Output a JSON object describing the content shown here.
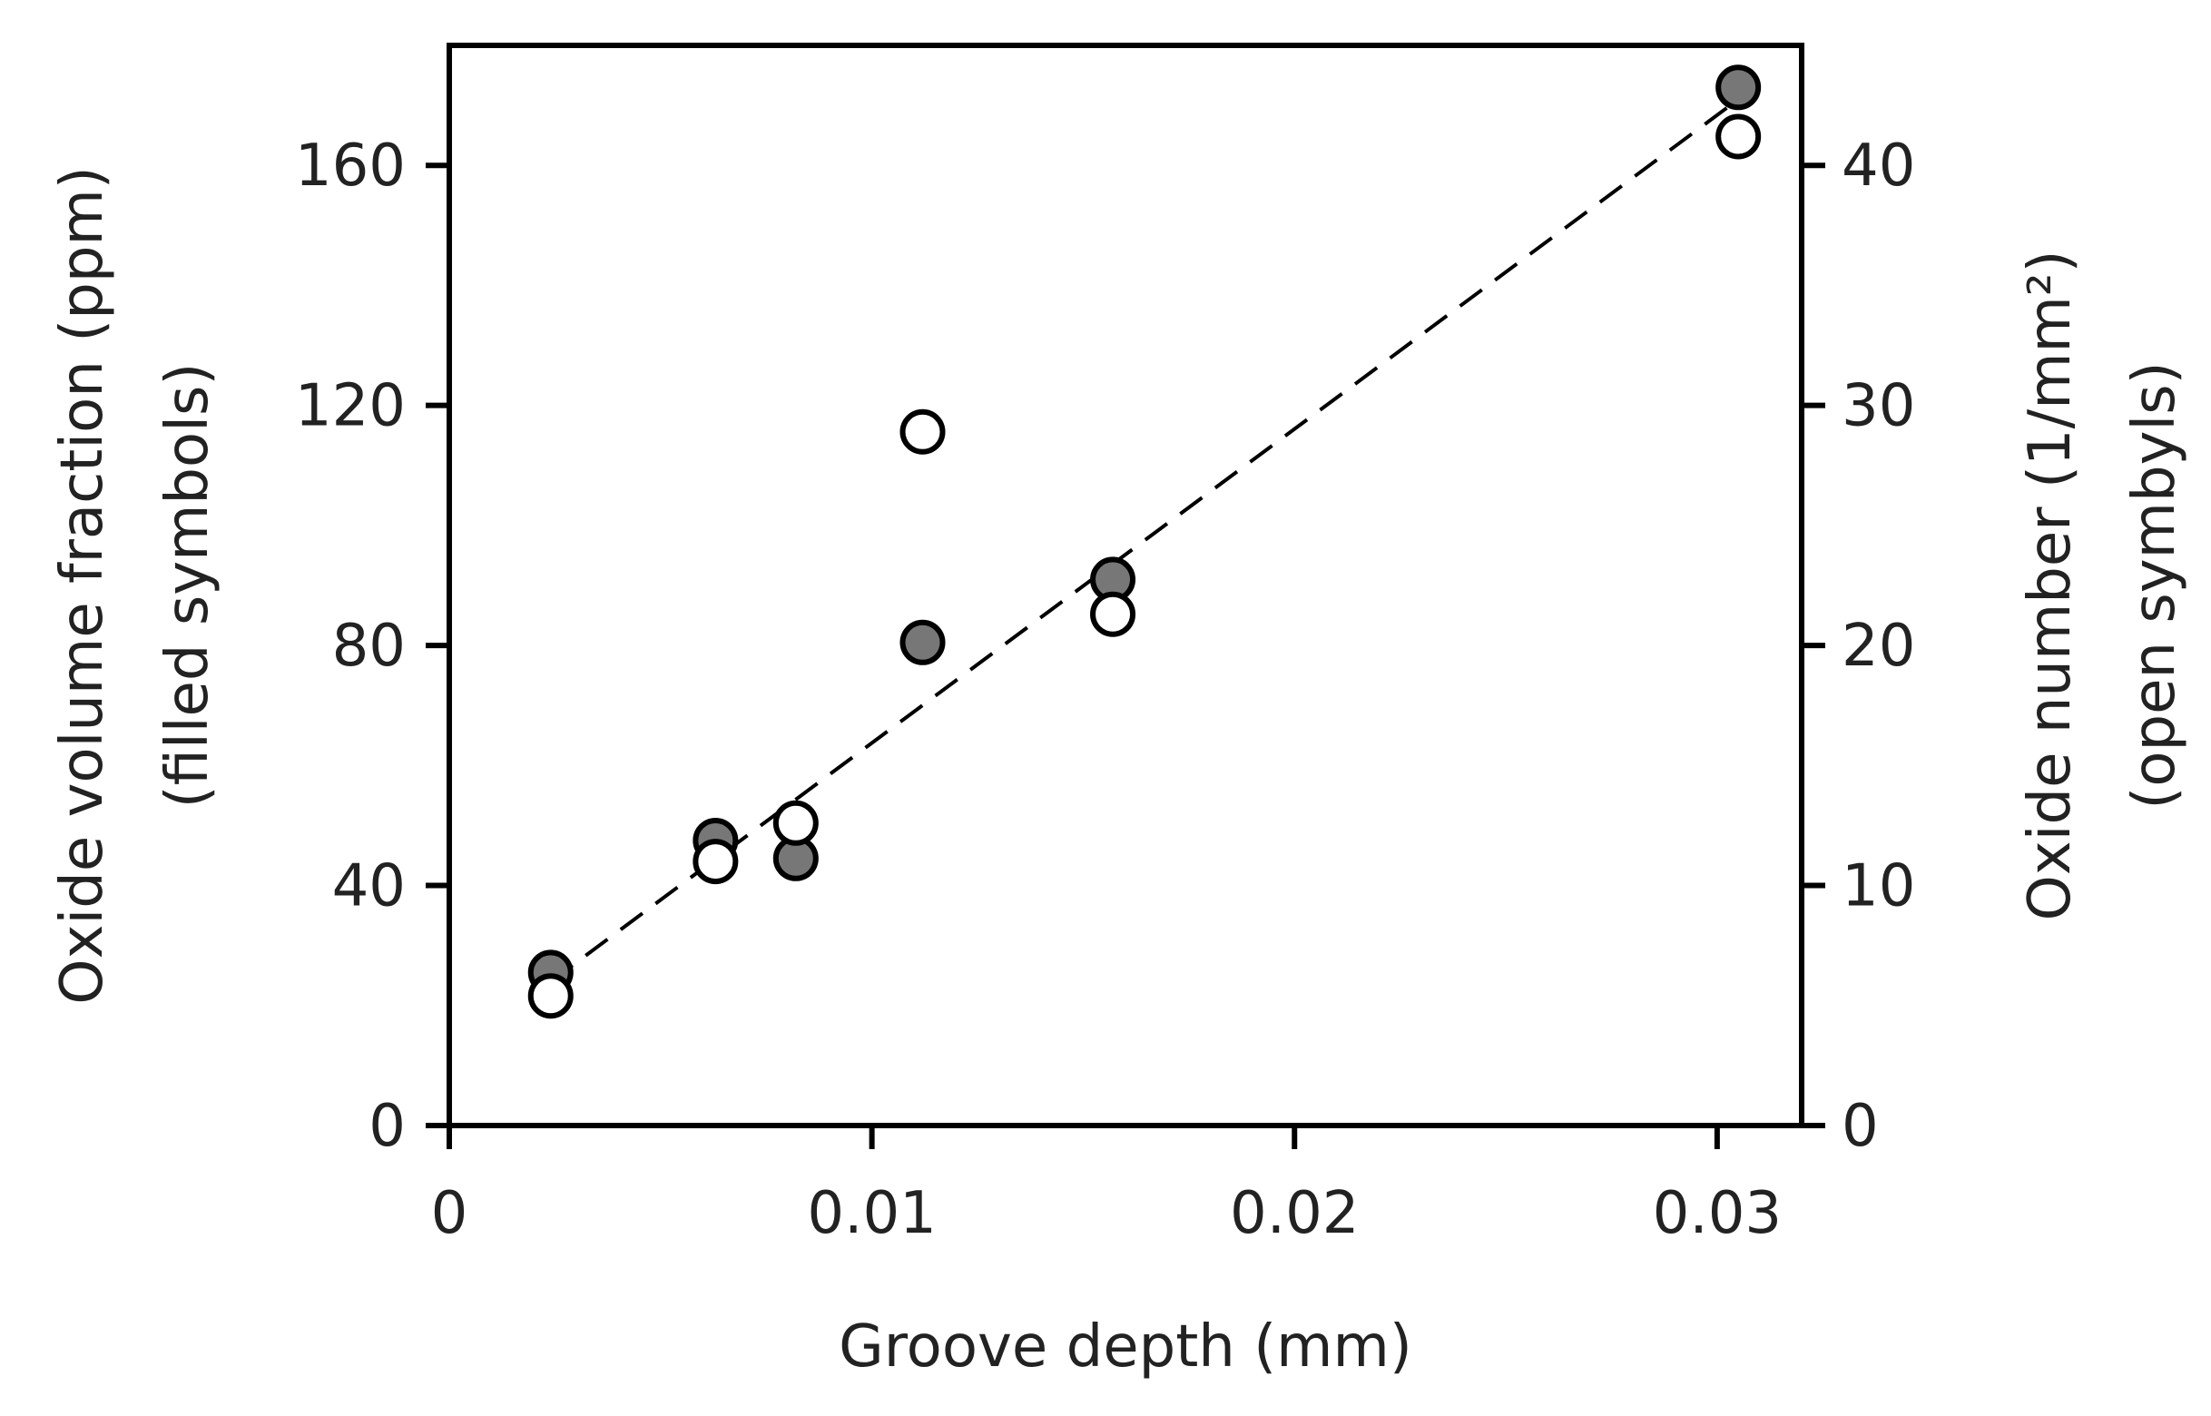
{
  "chart_data": {
    "type": "scatter",
    "xlabel": "Groove depth (mm)",
    "ylabel": [
      "Oxide volume fraction (ppm)",
      "(filled symbols)"
    ],
    "y2label": [
      "Oxide number (1/mm²)",
      "(open symbyls)"
    ],
    "xlim": [
      0,
      0.032
    ],
    "ylim": [
      0,
      180
    ],
    "y2lim": [
      0,
      45
    ],
    "xticks": [
      "0",
      "0.01",
      "0.02",
      "0.03"
    ],
    "xtick_values": [
      0,
      0.01,
      0.02,
      0.03
    ],
    "yticks": [
      "0",
      "40",
      "80",
      "120",
      "160"
    ],
    "ytick_values": [
      0,
      40,
      80,
      120,
      160
    ],
    "y2ticks": [
      "0",
      "10",
      "20",
      "30",
      "40"
    ],
    "y2tick_values": [
      0,
      10,
      20,
      30,
      40
    ],
    "grid": false,
    "series": [
      {
        "axis": "left",
        "marker": "filled-circle",
        "color": "#777777",
        "points": [
          {
            "x": 0.0024,
            "y": 25.5
          },
          {
            "x": 0.0063,
            "y": 47.5
          },
          {
            "x": 0.0082,
            "y": 44.5
          },
          {
            "x": 0.0112,
            "y": 80.5
          },
          {
            "x": 0.0157,
            "y": 91
          },
          {
            "x": 0.0305,
            "y": 173
          }
        ]
      },
      {
        "axis": "right",
        "marker": "open-circle",
        "color": "#000000",
        "points": [
          {
            "x": 0.0024,
            "y": 5.4
          },
          {
            "x": 0.0063,
            "y": 11.0
          },
          {
            "x": 0.0082,
            "y": 12.6
          },
          {
            "x": 0.0112,
            "y": 28.9
          },
          {
            "x": 0.0157,
            "y": 21.3
          },
          {
            "x": 0.0305,
            "y": 41.2
          }
        ]
      }
    ],
    "trendline": {
      "style": "dashed",
      "axis": "left",
      "points": [
        {
          "x": 0.0024,
          "y": 24
        },
        {
          "x": 0.0305,
          "y": 171
        }
      ]
    }
  }
}
